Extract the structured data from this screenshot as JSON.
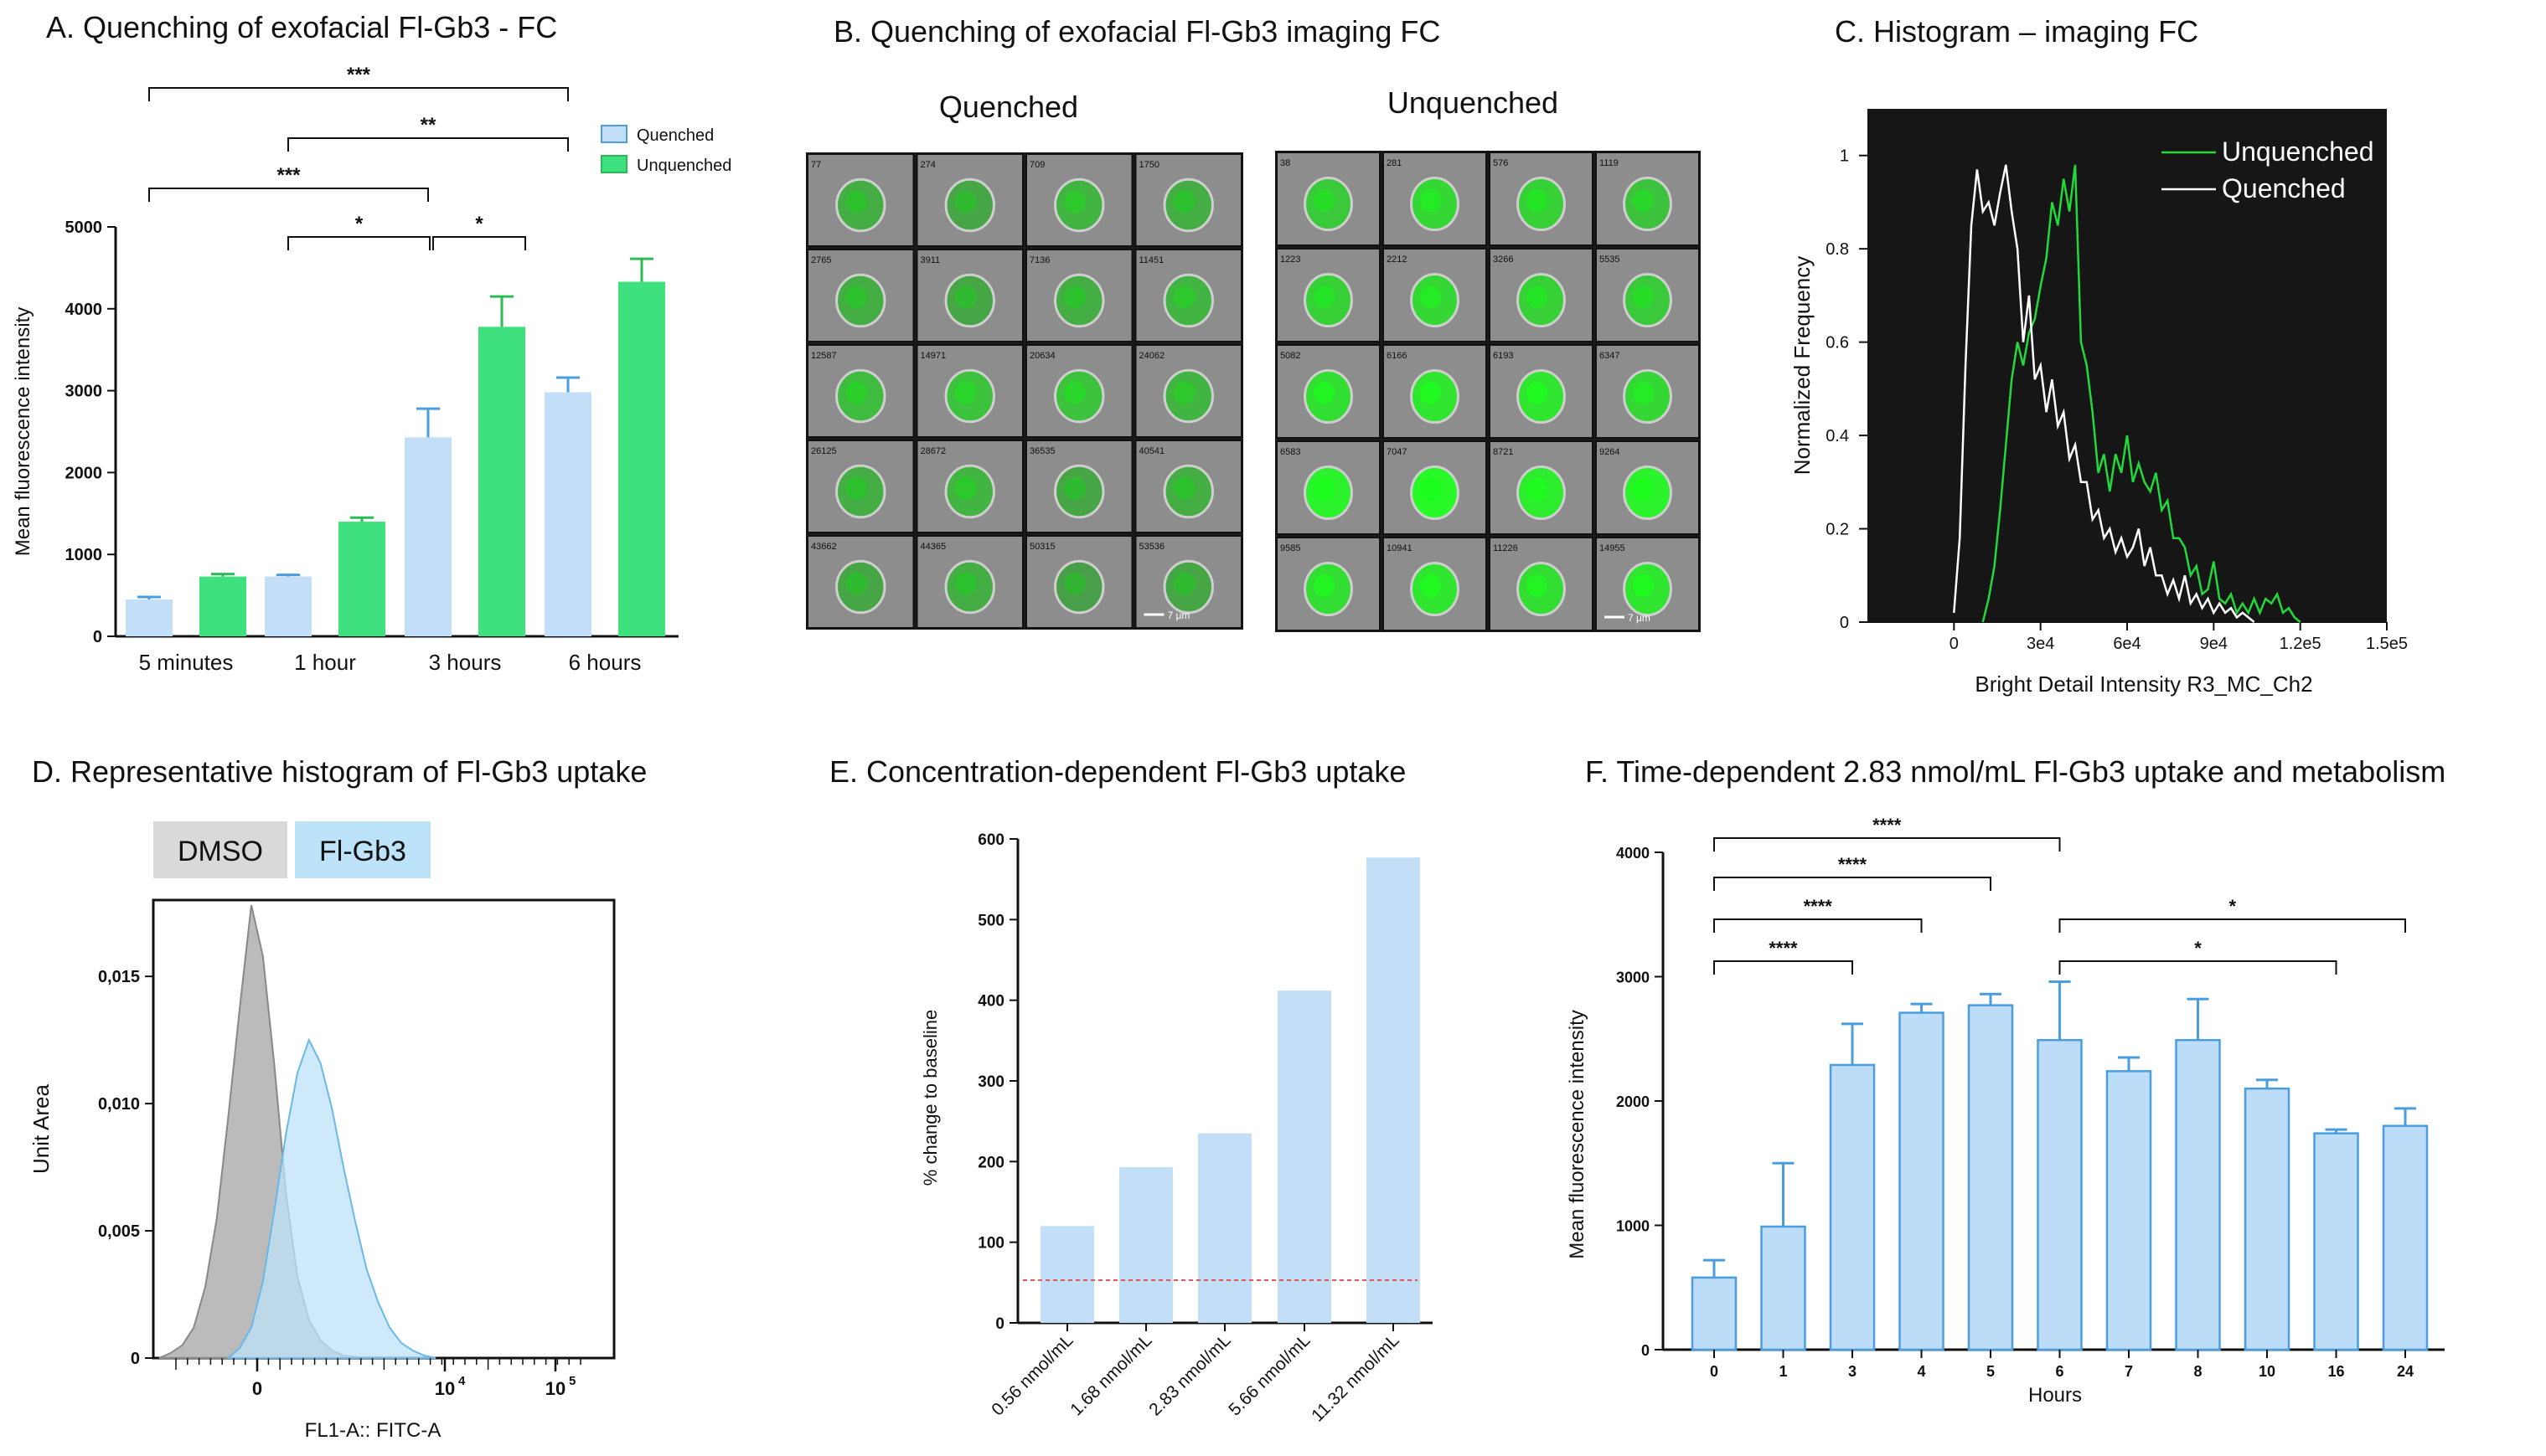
{
  "colors": {
    "quenched_fill": "#c2dff7",
    "quenched_err": "#4a9ee0",
    "unquenched_fill": "#3fe07e",
    "unquenched_err": "#2bbd55",
    "panelE_bar": "#c2dff7",
    "panelF_bar": "#bcdcf8",
    "panelF_edge": "#4a9ee0",
    "hist_bg": "#161616",
    "hist_green": "#22d93a",
    "hist_white": "#ffffff",
    "dmso_fill": "#b4b4b4",
    "flgb3_fill": "#bde3f8",
    "baseline_line": "#e05555"
  },
  "panels": {
    "a": {
      "title": "A. Quenching of exofacial Fl-Gb3 - FC"
    },
    "b": {
      "title": "B. Quenching of exofacial Fl-Gb3 imaging FC",
      "left_label": "Quenched",
      "right_label": "Unquenched"
    },
    "c": {
      "title": "C. Histogram  – imaging FC"
    },
    "d": {
      "title": "D. Representative histogram of Fl-Gb3 uptake"
    },
    "e": {
      "title": "E. Concentration-dependent Fl-Gb3  uptake"
    },
    "f": {
      "title": "F. Time-dependent 2.83 nmol/mL Fl-Gb3 uptake and metabolism"
    }
  },
  "chart_data": [
    {
      "id": "A",
      "type": "bar",
      "title": "A. Quenching of exofacial Fl-Gb3 - FC",
      "xlabel": "",
      "ylabel": "Mean fluorescence intensity",
      "ylim": [
        0,
        5000
      ],
      "yticks": [
        0,
        1000,
        2000,
        3000,
        4000,
        5000
      ],
      "categories": [
        "5 minutes",
        "1 hour",
        "3 hours",
        "6 hours"
      ],
      "series": [
        {
          "name": "Quenched",
          "values": [
            450,
            730,
            2430,
            2980
          ],
          "errors": [
            30,
            20,
            350,
            180
          ]
        },
        {
          "name": "Unquenched",
          "values": [
            730,
            1400,
            3780,
            4330
          ],
          "errors": [
            30,
            50,
            370,
            280
          ]
        }
      ],
      "significance": [
        {
          "from": "5 minutes|Quenched",
          "to": "6 hours|Quenched",
          "label": "***"
        },
        {
          "from": "1 hour|Quenched",
          "to": "6 hours|Quenched",
          "label": "**"
        },
        {
          "from": "5 minutes|Quenched",
          "to": "3 hours|Quenched",
          "label": "***"
        },
        {
          "from": "1 hour|Quenched",
          "to": "3 hours|Quenched",
          "label": "*"
        },
        {
          "from": "3 hours|Quenched",
          "to": "3 hours|Unquenched",
          "label": "*"
        }
      ],
      "legend_position": "top-right"
    },
    {
      "id": "B",
      "type": "image-grid",
      "title": "B. Quenching of exofacial Fl-Gb3 imaging FC",
      "grids": [
        {
          "label": "Quenched",
          "cell_ids": [
            "77",
            "274",
            "709",
            "1750",
            "2765",
            "3911",
            "7136",
            "11451",
            "12587",
            "14971",
            "20634",
            "24062",
            "26125",
            "28672",
            "36535",
            "40541",
            "43662",
            "44365",
            "50315",
            "53536"
          ],
          "intensity": [
            0.45,
            0.4,
            0.5,
            0.45,
            0.45,
            0.4,
            0.45,
            0.5,
            0.55,
            0.6,
            0.6,
            0.5,
            0.45,
            0.5,
            0.4,
            0.45,
            0.4,
            0.45,
            0.35,
            0.4
          ],
          "scale_bar": "7 μm"
        },
        {
          "label": "Unquenched",
          "cell_ids": [
            "38",
            "281",
            "576",
            "1119",
            "1223",
            "2212",
            "3266",
            "5535",
            "5082",
            "6166",
            "6193",
            "6347",
            "6583",
            "7047",
            "8721",
            "9264",
            "9585",
            "10941",
            "11226",
            "14955"
          ],
          "intensity": [
            0.65,
            0.75,
            0.7,
            0.6,
            0.7,
            0.75,
            0.7,
            0.65,
            0.8,
            0.85,
            0.85,
            0.75,
            0.95,
            1.0,
            0.9,
            0.95,
            0.8,
            0.85,
            0.8,
            0.85
          ],
          "scale_bar": "7 μm"
        }
      ]
    },
    {
      "id": "C",
      "type": "line",
      "title": "C. Histogram  – imaging FC",
      "xlabel": "Bright Detail Intensity R3_MC_Ch2",
      "ylabel": "Normalized Frequency",
      "xlim": [
        -30000,
        150000
      ],
      "ylim": [
        0,
        1.1
      ],
      "xticks": [
        0,
        30000,
        60000,
        90000,
        120000,
        150000
      ],
      "xtick_labels": [
        "0",
        "3e4",
        "6e4",
        "9e4",
        "1.2e5",
        "1.5e5"
      ],
      "yticks": [
        0,
        0.2,
        0.4,
        0.6,
        0.8,
        1
      ],
      "ytick_labels": [
        "0",
        "0.2",
        "0.4",
        "0.6",
        "0.8",
        "1"
      ],
      "series": [
        {
          "name": "Unquenched",
          "x": [
            10000,
            12000,
            14000,
            16000,
            18000,
            20000,
            22000,
            24000,
            26000,
            28000,
            30000,
            32000,
            34000,
            36000,
            38000,
            40000,
            42000,
            44000,
            46000,
            48000,
            50000,
            52000,
            54000,
            56000,
            58000,
            60000,
            62000,
            64000,
            66000,
            68000,
            70000,
            72000,
            74000,
            76000,
            78000,
            80000,
            82000,
            84000,
            86000,
            88000,
            90000,
            92000,
            94000,
            96000,
            98000,
            100000,
            102000,
            104000,
            106000,
            108000,
            110000,
            112000,
            114000,
            116000,
            118000,
            120000
          ],
          "y": [
            0,
            0.05,
            0.12,
            0.24,
            0.38,
            0.52,
            0.6,
            0.55,
            0.62,
            0.65,
            0.72,
            0.78,
            0.9,
            0.85,
            0.95,
            0.88,
            0.98,
            0.6,
            0.55,
            0.45,
            0.32,
            0.36,
            0.28,
            0.36,
            0.32,
            0.4,
            0.3,
            0.34,
            0.3,
            0.28,
            0.32,
            0.24,
            0.26,
            0.18,
            0.18,
            0.16,
            0.1,
            0.12,
            0.06,
            0.07,
            0.13,
            0.05,
            0.04,
            0.06,
            0.02,
            0.04,
            0.02,
            0.05,
            0.02,
            0.05,
            0.04,
            0.06,
            0.02,
            0.03,
            0.01,
            0
          ]
        },
        {
          "name": "Quenched",
          "x": [
            0,
            2000,
            4000,
            6000,
            8000,
            10000,
            12000,
            14000,
            16000,
            18000,
            20000,
            22000,
            24000,
            26000,
            28000,
            30000,
            32000,
            34000,
            36000,
            38000,
            40000,
            42000,
            44000,
            46000,
            48000,
            50000,
            52000,
            54000,
            56000,
            58000,
            60000,
            62000,
            64000,
            66000,
            68000,
            70000,
            72000,
            74000,
            76000,
            78000,
            80000,
            82000,
            84000,
            86000,
            88000,
            90000,
            92000,
            94000,
            96000,
            98000,
            100000,
            102000,
            104000
          ],
          "y": [
            0.02,
            0.18,
            0.55,
            0.85,
            0.97,
            0.88,
            0.9,
            0.85,
            0.92,
            0.98,
            0.88,
            0.8,
            0.6,
            0.7,
            0.52,
            0.55,
            0.45,
            0.52,
            0.42,
            0.45,
            0.35,
            0.38,
            0.3,
            0.3,
            0.22,
            0.24,
            0.18,
            0.2,
            0.15,
            0.18,
            0.14,
            0.16,
            0.2,
            0.12,
            0.16,
            0.1,
            0.1,
            0.06,
            0.09,
            0.05,
            0.1,
            0.04,
            0.06,
            0.03,
            0.05,
            0.02,
            0.04,
            0.02,
            0.03,
            0.01,
            0.02,
            0.01,
            0
          ]
        }
      ],
      "legend_position": "top-right"
    },
    {
      "id": "D",
      "type": "area",
      "title": "D. Representative histogram of Fl-Gb3 uptake",
      "xlabel": "FL1-A:: FITC-A",
      "ylabel": "Unit Area",
      "ylim": [
        0,
        0.018
      ],
      "yticks": [
        0,
        0.005,
        0.01,
        0.015
      ],
      "ytick_labels": [
        "0",
        "0,005",
        "0,010",
        "0,015"
      ],
      "xtick_labels": [
        "0",
        "10",
        "10"
      ],
      "xtick_exponents": [
        "",
        "4",
        "5"
      ],
      "x_scale": "logicle",
      "series": [
        {
          "name": "DMSO",
          "x": [
            -2.0,
            -1.75,
            -1.5,
            -1.25,
            -1.0,
            -0.75,
            -0.5,
            -0.25,
            0.0,
            0.25,
            0.5,
            0.75,
            1.0,
            1.25,
            1.5,
            1.75,
            2.0,
            2.25,
            2.5
          ],
          "y": [
            0,
            0.0002,
            0.0005,
            0.0012,
            0.0028,
            0.0055,
            0.0095,
            0.0138,
            0.0178,
            0.0158,
            0.0115,
            0.0065,
            0.0032,
            0.0015,
            0.0007,
            0.0003,
            0.0001,
            5e-05,
            0
          ]
        },
        {
          "name": "Fl-Gb3",
          "x": [
            -0.5,
            -0.25,
            0.0,
            0.25,
            0.5,
            0.75,
            1.0,
            1.25,
            1.5,
            1.75,
            2.0,
            2.25,
            2.5,
            2.75,
            3.0,
            3.25,
            3.5,
            3.75,
            4.0
          ],
          "y": [
            0,
            0.0004,
            0.0012,
            0.003,
            0.0058,
            0.0088,
            0.0112,
            0.0125,
            0.0116,
            0.0098,
            0.0075,
            0.0054,
            0.0035,
            0.0022,
            0.0012,
            0.0006,
            0.0003,
            0.0001,
            0
          ]
        }
      ],
      "legend_position": "top-left"
    },
    {
      "id": "E",
      "type": "bar",
      "title": "E. Concentration-dependent Fl-Gb3  uptake",
      "xlabel": "",
      "ylabel": "% change to baseline",
      "ylim": [
        0,
        600
      ],
      "yticks": [
        0,
        100,
        200,
        300,
        400,
        500,
        600
      ],
      "categories": [
        "0.56 nmol/mL",
        "1.68 nmol/mL",
        "2.83 nmol/mL",
        "5.66 nmol/mL",
        "11.32 nmol/mL"
      ],
      "values": [
        120,
        193,
        235,
        412,
        577
      ],
      "reference_line": 53
    },
    {
      "id": "F",
      "type": "bar",
      "title": "F. Time-dependent 2.83 nmol/mL Fl-Gb3 uptake and metabolism",
      "xlabel": "Hours",
      "ylabel": "Mean fluorescence intensity",
      "ylim": [
        0,
        4000
      ],
      "yticks": [
        0,
        1000,
        2000,
        3000,
        4000
      ],
      "categories": [
        "0",
        "1",
        "3",
        "4",
        "5",
        "6",
        "7",
        "8",
        "10",
        "16",
        "24"
      ],
      "values": [
        580,
        990,
        2290,
        2710,
        2770,
        2490,
        2240,
        2490,
        2100,
        1740,
        1800
      ],
      "errors": [
        140,
        510,
        330,
        70,
        90,
        470,
        110,
        330,
        70,
        30,
        140
      ],
      "significance": [
        {
          "from": "0",
          "to": "6",
          "label": "****"
        },
        {
          "from": "0",
          "to": "5",
          "label": "****"
        },
        {
          "from": "0",
          "to": "4",
          "label": "****"
        },
        {
          "from": "0",
          "to": "3",
          "label": "****"
        },
        {
          "from": "6",
          "to": "24",
          "label": "*"
        },
        {
          "from": "6",
          "to": "16",
          "label": "*"
        }
      ]
    }
  ]
}
